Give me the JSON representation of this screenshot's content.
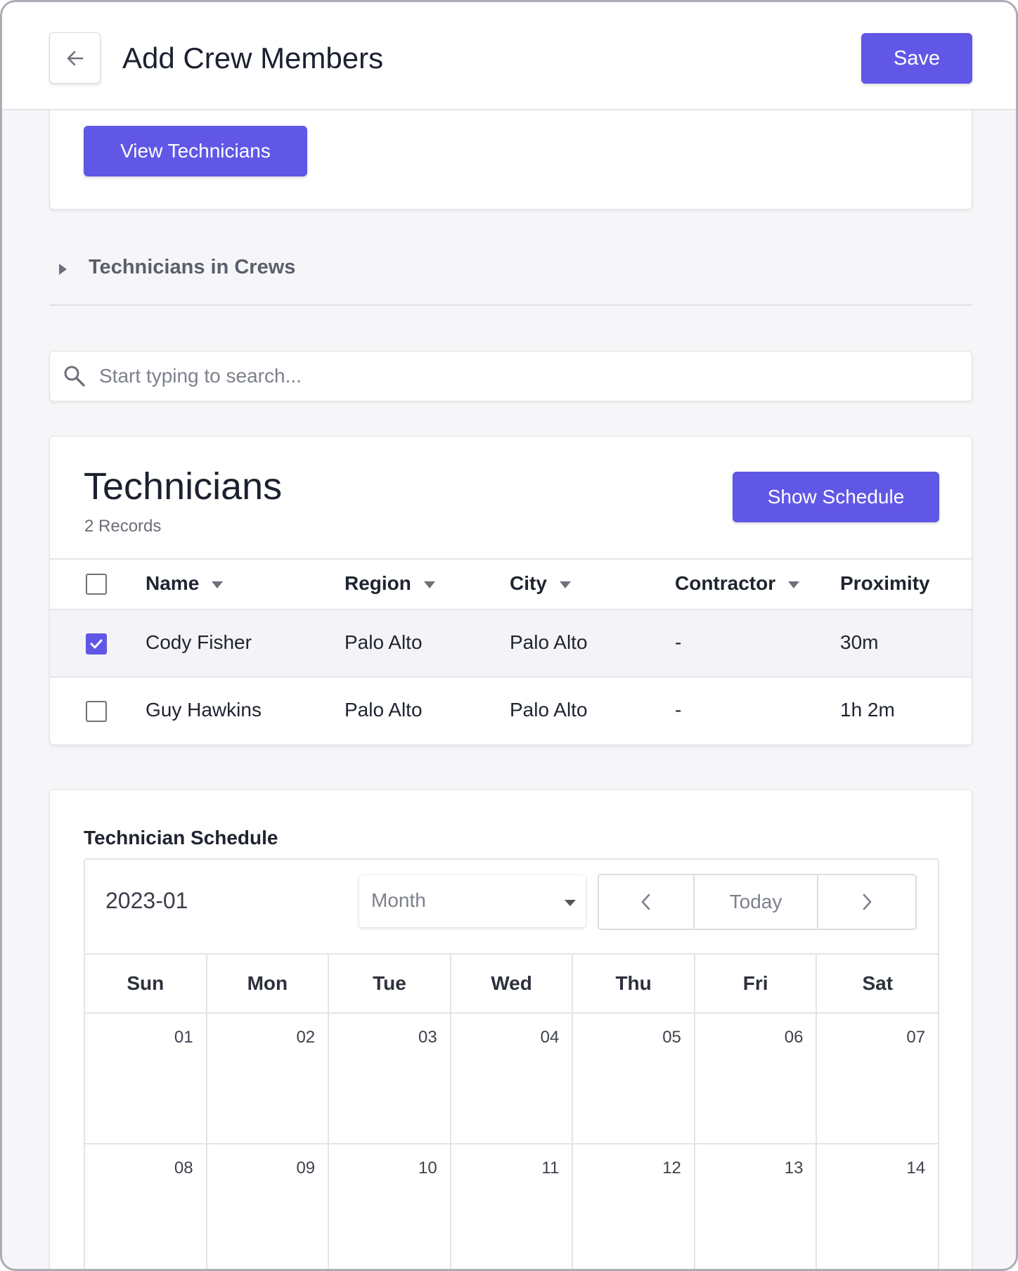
{
  "header": {
    "title": "Add Crew Members",
    "save_label": "Save",
    "back_icon": "arrow-left-icon"
  },
  "top_card": {
    "view_technicians_label": "View Technicians"
  },
  "crews_section": {
    "label": "Technicians in Crews"
  },
  "search": {
    "placeholder": "Start typing to search...",
    "value": ""
  },
  "technicians": {
    "title": "Technicians",
    "count": "2 Records",
    "show_schedule_label": "Show Schedule",
    "columns": [
      "Name",
      "Region",
      "City",
      "Contractor",
      "Proximity"
    ],
    "rows": [
      {
        "name": "Cody Fisher",
        "region": "Palo Alto",
        "city": "Palo Alto",
        "contractor": "-",
        "proximity": "30m",
        "checked": true
      },
      {
        "name": "Guy Hawkins",
        "region": "Palo Alto",
        "city": "Palo Alto",
        "contractor": "-",
        "proximity": "1h 2m",
        "checked": false
      }
    ]
  },
  "schedule": {
    "title": "Technician Schedule",
    "period": "2023-01",
    "view": "Month",
    "today_label": "Today",
    "weekdays": [
      "Sun",
      "Mon",
      "Tue",
      "Wed",
      "Thu",
      "Fri",
      "Sat"
    ],
    "weeks": [
      [
        "01",
        "02",
        "03",
        "04",
        "05",
        "06",
        "07"
      ],
      [
        "08",
        "09",
        "10",
        "11",
        "12",
        "13",
        "14"
      ]
    ]
  },
  "colors": {
    "accent": "#6157e6",
    "background": "#f6f6f8",
    "border": "#e3e4e8"
  }
}
